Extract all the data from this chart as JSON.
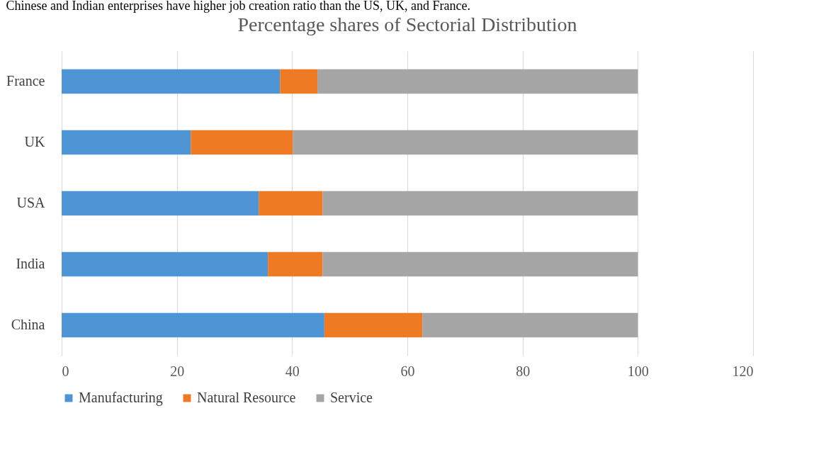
{
  "chart_data": {
    "type": "bar",
    "orientation": "horizontal",
    "stacked": true,
    "title": "Percentage shares of Sectorial Distribution",
    "annotations": [
      "Chinese and Indian enterprises have higher job creation ratio than the US, UK, and France."
    ],
    "categories": [
      "France",
      "UK",
      "USA",
      "India",
      "China"
    ],
    "series": [
      {
        "name": "Manufacturing",
        "color": "#4e95d5",
        "values": [
          37.9,
          22.4,
          34.2,
          35.8,
          45.6
        ]
      },
      {
        "name": "Natural Resource",
        "color": "#ee7b24",
        "values": [
          6.5,
          17.7,
          11.1,
          9.5,
          17.0
        ]
      },
      {
        "name": "Service",
        "color": "#a5a5a5",
        "values": [
          55.6,
          59.9,
          54.7,
          54.7,
          37.4
        ]
      }
    ],
    "xlim": [
      0,
      120
    ],
    "xticks": [
      0,
      20,
      40,
      60,
      80,
      100,
      120
    ],
    "grid": "x",
    "legend": "bottom"
  }
}
